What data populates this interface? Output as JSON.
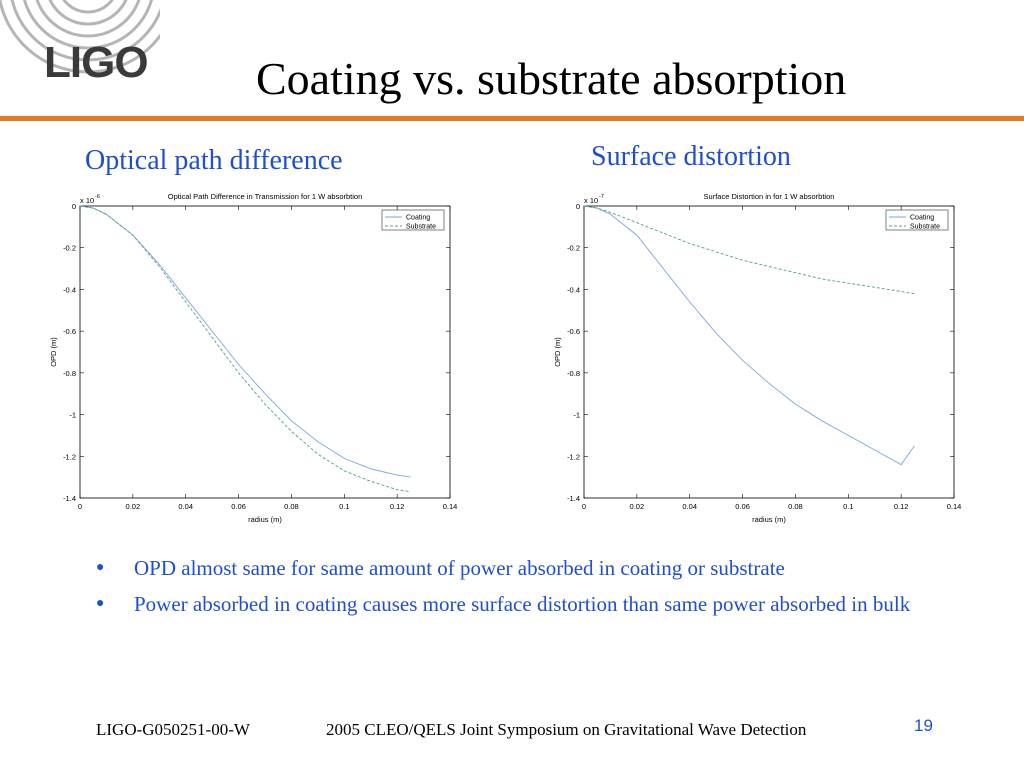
{
  "slide": {
    "logo": "LIGO",
    "title": "Coating vs. substrate absorption",
    "subhead_left": "Optical path difference",
    "subhead_right": "Surface distortion",
    "bullets": [
      "OPD almost same for same amount of power absorbed in coating or substrate",
      "Power absorbed in coating causes more surface distortion than same power absorbed in bulk"
    ],
    "footer_doc": "LIGO-G050251-00-W",
    "footer_event": "2005 CLEO/QELS Joint Symposium on Gravitational Wave Detection",
    "page_number": "19",
    "colors": {
      "title_blue": "#1f4fd0",
      "rule_orange": "#e5792a",
      "coating_series": "#7aa6e0",
      "substrate_series": "#4f9f88"
    }
  },
  "chart_data": [
    {
      "type": "line",
      "title": "Optical Path Difference in Transmission for 1 W absorbtion",
      "xlabel": "radius (m)",
      "ylabel": "OPD (m)",
      "y_multiplier": "x 10",
      "y_exponent": "-6",
      "xlim": [
        0,
        0.14
      ],
      "ylim": [
        -1.4,
        0
      ],
      "xticks": [
        "0",
        "0.02",
        "0.04",
        "0.06",
        "0.08",
        "0.1",
        "0.12",
        "0.14"
      ],
      "yticks": [
        "0",
        "-0.2",
        "-0.4",
        "-0.6",
        "-0.8",
        "-1",
        "-1.2",
        "-1.4"
      ],
      "legend_position": "top-right",
      "grid": false,
      "series": [
        {
          "name": "Coating",
          "x": [
            0,
            0.005,
            0.01,
            0.02,
            0.03,
            0.04,
            0.05,
            0.06,
            0.07,
            0.08,
            0.09,
            0.1,
            0.11,
            0.12,
            0.125
          ],
          "y": [
            0,
            -0.01,
            -0.04,
            -0.14,
            -0.28,
            -0.44,
            -0.6,
            -0.76,
            -0.9,
            -1.03,
            -1.13,
            -1.21,
            -1.26,
            -1.29,
            -1.3
          ]
        },
        {
          "name": "Substrate",
          "x": [
            0,
            0.005,
            0.01,
            0.02,
            0.03,
            0.04,
            0.05,
            0.06,
            0.07,
            0.08,
            0.09,
            0.1,
            0.11,
            0.12,
            0.125
          ],
          "y": [
            0,
            -0.01,
            -0.04,
            -0.14,
            -0.29,
            -0.46,
            -0.63,
            -0.8,
            -0.95,
            -1.08,
            -1.19,
            -1.27,
            -1.32,
            -1.36,
            -1.37
          ]
        }
      ]
    },
    {
      "type": "line",
      "title": "Surface Distortion in for 1 W absorbtion",
      "xlabel": "radius (m)",
      "ylabel": "OPD (m)",
      "y_multiplier": "x 10",
      "y_exponent": "-7",
      "xlim": [
        0,
        0.14
      ],
      "ylim": [
        -1.4,
        0
      ],
      "xticks": [
        "0",
        "0.02",
        "0.04",
        "0.06",
        "0.08",
        "0.1",
        "0.12",
        "0.14"
      ],
      "yticks": [
        "0",
        "-0.2",
        "-0.4",
        "-0.6",
        "-0.8",
        "-1",
        "-1.2",
        "-1.4"
      ],
      "legend_position": "top-right",
      "grid": false,
      "series": [
        {
          "name": "Coating",
          "x": [
            0,
            0.005,
            0.01,
            0.02,
            0.03,
            0.04,
            0.05,
            0.06,
            0.07,
            0.08,
            0.09,
            0.1,
            0.11,
            0.12,
            0.125
          ],
          "y": [
            0,
            -0.01,
            -0.04,
            -0.14,
            -0.3,
            -0.46,
            -0.61,
            -0.74,
            -0.85,
            -0.95,
            -1.03,
            -1.1,
            -1.17,
            -1.24,
            -1.15
          ]
        },
        {
          "name": "Substrate",
          "x": [
            0,
            0.005,
            0.01,
            0.02,
            0.03,
            0.04,
            0.05,
            0.06,
            0.07,
            0.08,
            0.09,
            0.1,
            0.11,
            0.12,
            0.125
          ],
          "y": [
            0,
            -0.01,
            -0.03,
            -0.08,
            -0.13,
            -0.18,
            -0.22,
            -0.26,
            -0.29,
            -0.32,
            -0.35,
            -0.37,
            -0.39,
            -0.41,
            -0.42
          ]
        }
      ]
    }
  ]
}
